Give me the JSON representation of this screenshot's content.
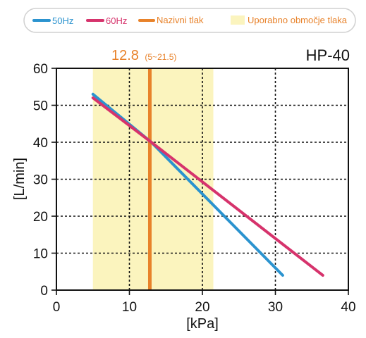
{
  "chart_data": {
    "type": "line",
    "model": "HP-40",
    "xlabel": "[kPa]",
    "ylabel": "[L/min]",
    "xlim": [
      0,
      40
    ],
    "ylim": [
      0,
      60
    ],
    "x_ticks": [
      "0",
      "10",
      "20",
      "30",
      "40"
    ],
    "y_ticks": [
      "0",
      "10",
      "20",
      "30",
      "40",
      "50",
      "60"
    ],
    "grid": true,
    "legend_position": "top",
    "legend": {
      "series_50": "50Hz",
      "series_60": "60Hz",
      "rated": "Nazivni tlak",
      "range": "Uporabno območje tlaka"
    },
    "series": [
      {
        "name": "50Hz",
        "color": "#2b93cf",
        "x": [
          5,
          13,
          31
        ],
        "y": [
          53,
          40,
          4
        ]
      },
      {
        "name": "60Hz",
        "color": "#d6336c",
        "x": [
          5,
          13,
          36.5
        ],
        "y": [
          52,
          40,
          4
        ]
      }
    ],
    "rated_pressure": {
      "value": 12.8,
      "label": "12.8",
      "range_label": "(5~21.5)",
      "color": "#e8822a"
    },
    "usable_range": {
      "from": 5,
      "to": 21.5,
      "color": "#fbf4be"
    }
  }
}
